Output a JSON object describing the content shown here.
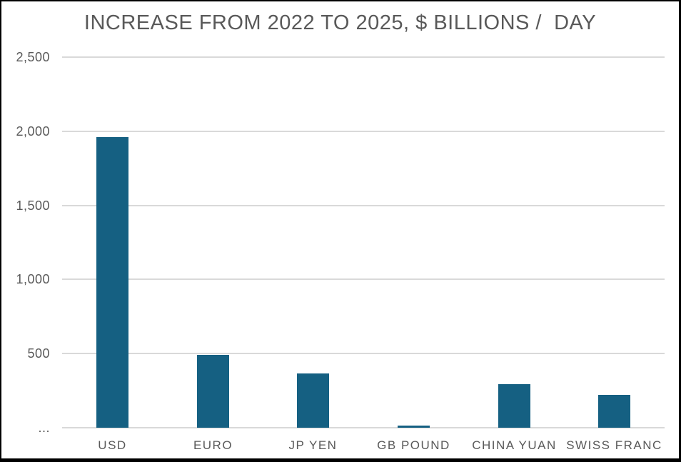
{
  "chart_data": {
    "type": "bar",
    "title": "INCREASE FROM 2022 TO 2025, $ BILLIONS /  DAY",
    "categories": [
      "USD",
      "EURO",
      "JP YEN",
      "GB POUND",
      "CHINA YUAN",
      "SWISS FRANC"
    ],
    "values": [
      1960,
      490,
      365,
      15,
      295,
      220
    ],
    "xlabel": "",
    "ylabel": "",
    "ylim": [
      0,
      2500
    ],
    "yticks": [
      {
        "value": 0,
        "label": "..."
      },
      {
        "value": 500,
        "label": "500"
      },
      {
        "value": 1000,
        "label": "1,000"
      },
      {
        "value": 1500,
        "label": "1,500"
      },
      {
        "value": 2000,
        "label": "2,000"
      },
      {
        "value": 2500,
        "label": "2,500"
      }
    ],
    "grid": true,
    "legend": "none",
    "colors": {
      "bar": "#156082",
      "gridline": "#d9d9d9",
      "text": "#595959",
      "frame_border": "#000000",
      "background": "#ffffff"
    }
  }
}
